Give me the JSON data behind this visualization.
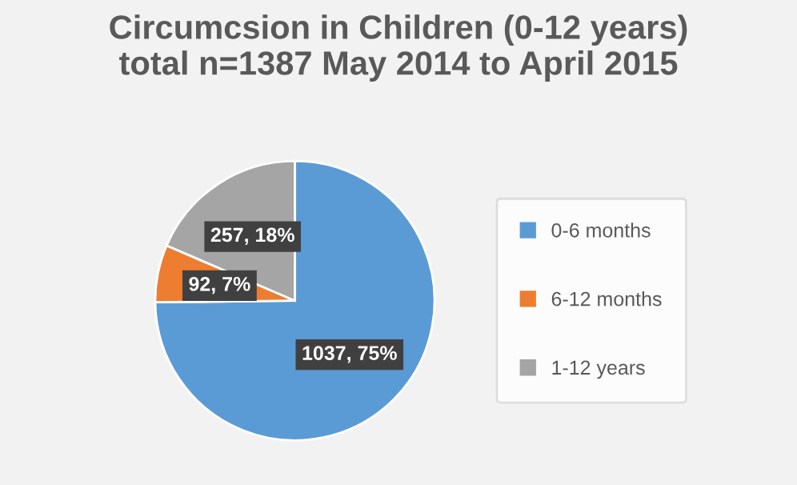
{
  "chart_data": {
    "type": "pie",
    "title": "Circumcsion in Children (0-12 years)\ntotal n=1387 May 2014 to April 2015",
    "categories": [
      "0-6 months",
      "6-12 months",
      "1-12 years"
    ],
    "values": [
      1037,
      92,
      257
    ],
    "colors": [
      "#5b9bd5",
      "#ed7d31",
      "#a5a5a5"
    ],
    "value_labels": [
      "1037, 75%",
      "92, 7%",
      "257, 18%"
    ],
    "legend": "right"
  }
}
